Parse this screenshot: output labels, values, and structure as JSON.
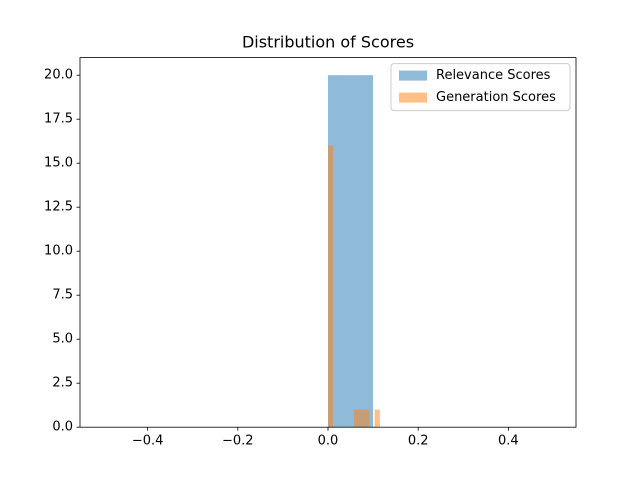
{
  "chart_data": {
    "type": "histogram",
    "title": "Distribution of Scores",
    "series": [
      {
        "name": "Relevance Scores",
        "color": "#1f77b4",
        "bins": [
          -0.5,
          -0.4,
          -0.3,
          -0.2,
          -0.1,
          0.0,
          0.1,
          0.2,
          0.3,
          0.4,
          0.5
        ],
        "values": [
          0,
          0,
          0,
          0,
          0,
          20,
          0,
          0,
          0,
          0
        ]
      },
      {
        "name": "Generation Scores",
        "color": "#ff7f0e",
        "bins": [
          0.0,
          0.0115,
          0.023,
          0.0345,
          0.046,
          0.0575,
          0.069,
          0.0805,
          0.092,
          0.1035,
          0.115
        ],
        "values": [
          16,
          0,
          0,
          0,
          0,
          1,
          1,
          1,
          0,
          1
        ]
      }
    ],
    "alpha": 0.5,
    "xlim": [
      -0.55,
      0.55
    ],
    "xticks": [
      {
        "value": -0.4,
        "label": "−0.4"
      },
      {
        "value": -0.2,
        "label": "−0.2"
      },
      {
        "value": 0.0,
        "label": "0.0"
      },
      0.2,
      0.4
    ],
    "ylim": [
      0,
      21
    ],
    "yticks": [
      {
        "value": 0,
        "label": "0.0"
      },
      2.5,
      {
        "value": 5,
        "label": "5.0"
      },
      7.5,
      {
        "value": 10,
        "label": "10.0"
      },
      12.5,
      {
        "value": 15,
        "label": "15.0"
      },
      17.5,
      {
        "value": 20,
        "label": "20.0"
      }
    ],
    "legend": "upper right",
    "grid": false
  }
}
